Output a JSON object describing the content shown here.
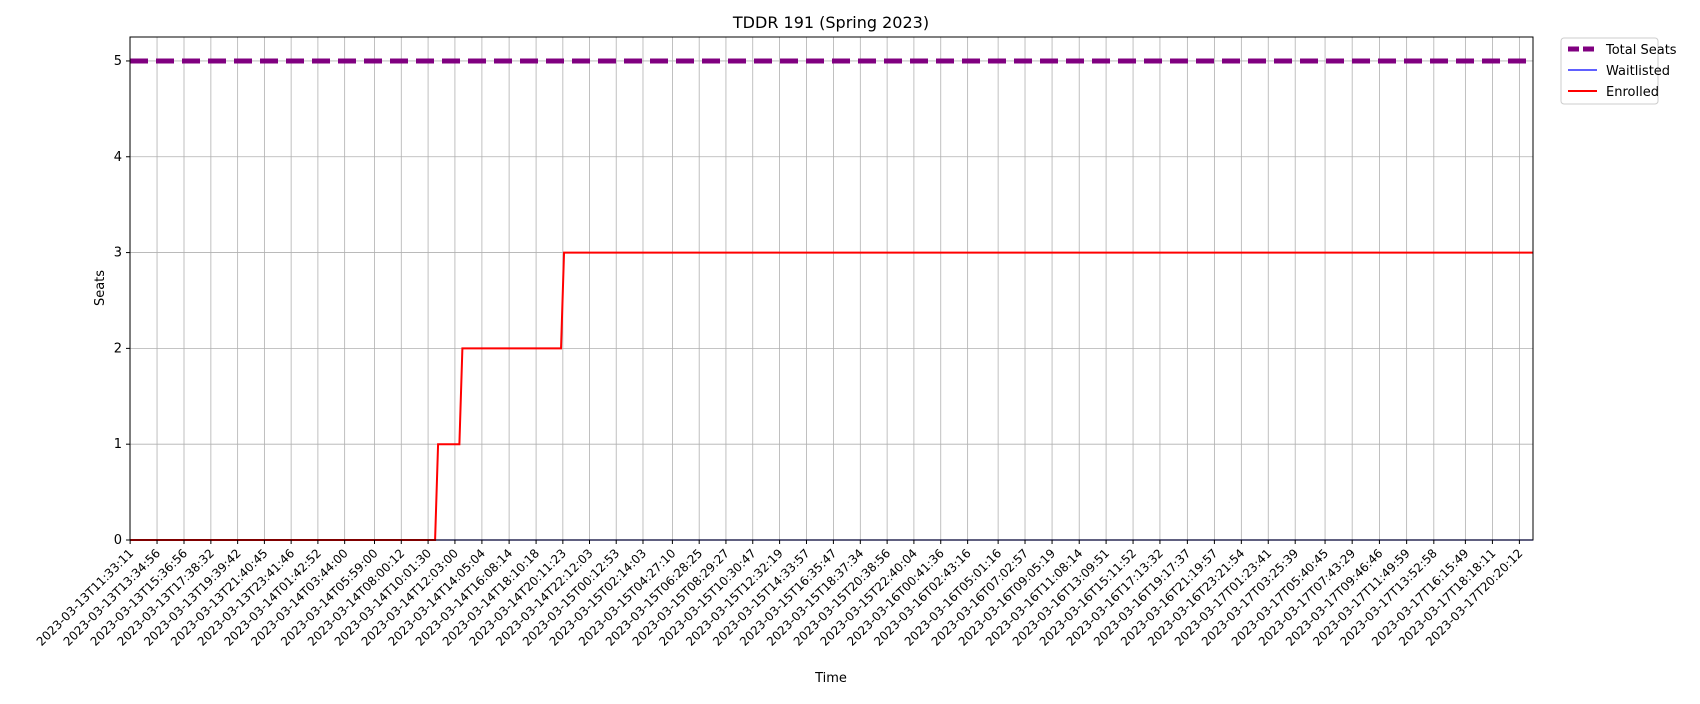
{
  "chart_data": {
    "type": "line",
    "title": "TDDR 191 (Spring 2023)",
    "xlabel": "Time",
    "ylabel": "Seats",
    "ylim": [
      0,
      5.25
    ],
    "yticks": [
      0,
      1,
      2,
      3,
      4,
      5
    ],
    "grid": true,
    "legend_position": "outside-top-right",
    "x": [
      "2023-03-13T11:33:11",
      "2023-03-13T13:34:56",
      "2023-03-13T15:36:56",
      "2023-03-13T17:38:32",
      "2023-03-13T19:39:42",
      "2023-03-13T21:40:45",
      "2023-03-13T23:41:46",
      "2023-03-14T01:42:52",
      "2023-03-14T03:44:00",
      "2023-03-14T05:59:00",
      "2023-03-14T08:00:12",
      "2023-03-14T10:01:30",
      "2023-03-14T12:03:00",
      "2023-03-14T14:05:04",
      "2023-03-14T16:08:14",
      "2023-03-14T18:10:18",
      "2023-03-14T20:11:23",
      "2023-03-14T22:12:03",
      "2023-03-15T00:12:53",
      "2023-03-15T02:14:03",
      "2023-03-15T04:27:10",
      "2023-03-15T06:28:25",
      "2023-03-15T08:29:27",
      "2023-03-15T10:30:47",
      "2023-03-15T12:32:19",
      "2023-03-15T14:33:57",
      "2023-03-15T16:35:47",
      "2023-03-15T18:37:34",
      "2023-03-15T20:38:56",
      "2023-03-15T22:40:04",
      "2023-03-16T00:41:36",
      "2023-03-16T02:43:16",
      "2023-03-16T05:01:16",
      "2023-03-16T07:02:57",
      "2023-03-16T09:05:19",
      "2023-03-16T11:08:14",
      "2023-03-16T13:09:51",
      "2023-03-16T15:11:52",
      "2023-03-16T17:13:32",
      "2023-03-16T19:17:37",
      "2023-03-16T21:19:57",
      "2023-03-16T23:21:54",
      "2023-03-17T01:23:41",
      "2023-03-17T03:25:39",
      "2023-03-17T05:40:45",
      "2023-03-17T07:43:29",
      "2023-03-17T09:46:46",
      "2023-03-17T11:49:59",
      "2023-03-17T13:52:58",
      "2023-03-17T16:15:49",
      "2023-03-17T18:18:11",
      "2023-03-17T20:20:12"
    ],
    "series": [
      {
        "name": "Total Seats",
        "color": "#800080",
        "style": "dashed",
        "step_changes": [
          [
            "2023-03-13T11:33:11",
            5
          ]
        ]
      },
      {
        "name": "Waitlisted",
        "color": "#0000ff",
        "style": "solid",
        "step_changes": [
          [
            "2023-03-13T11:33:11",
            0
          ]
        ]
      },
      {
        "name": "Enrolled",
        "color": "#ff0000",
        "style": "solid",
        "step_changes": [
          [
            "2023-03-13T11:33:11",
            0
          ],
          [
            "2023-03-14T10:40:00",
            1
          ],
          [
            "2023-03-14T12:30:00",
            2
          ],
          [
            "2023-03-14T20:10:00",
            3
          ]
        ]
      }
    ]
  }
}
